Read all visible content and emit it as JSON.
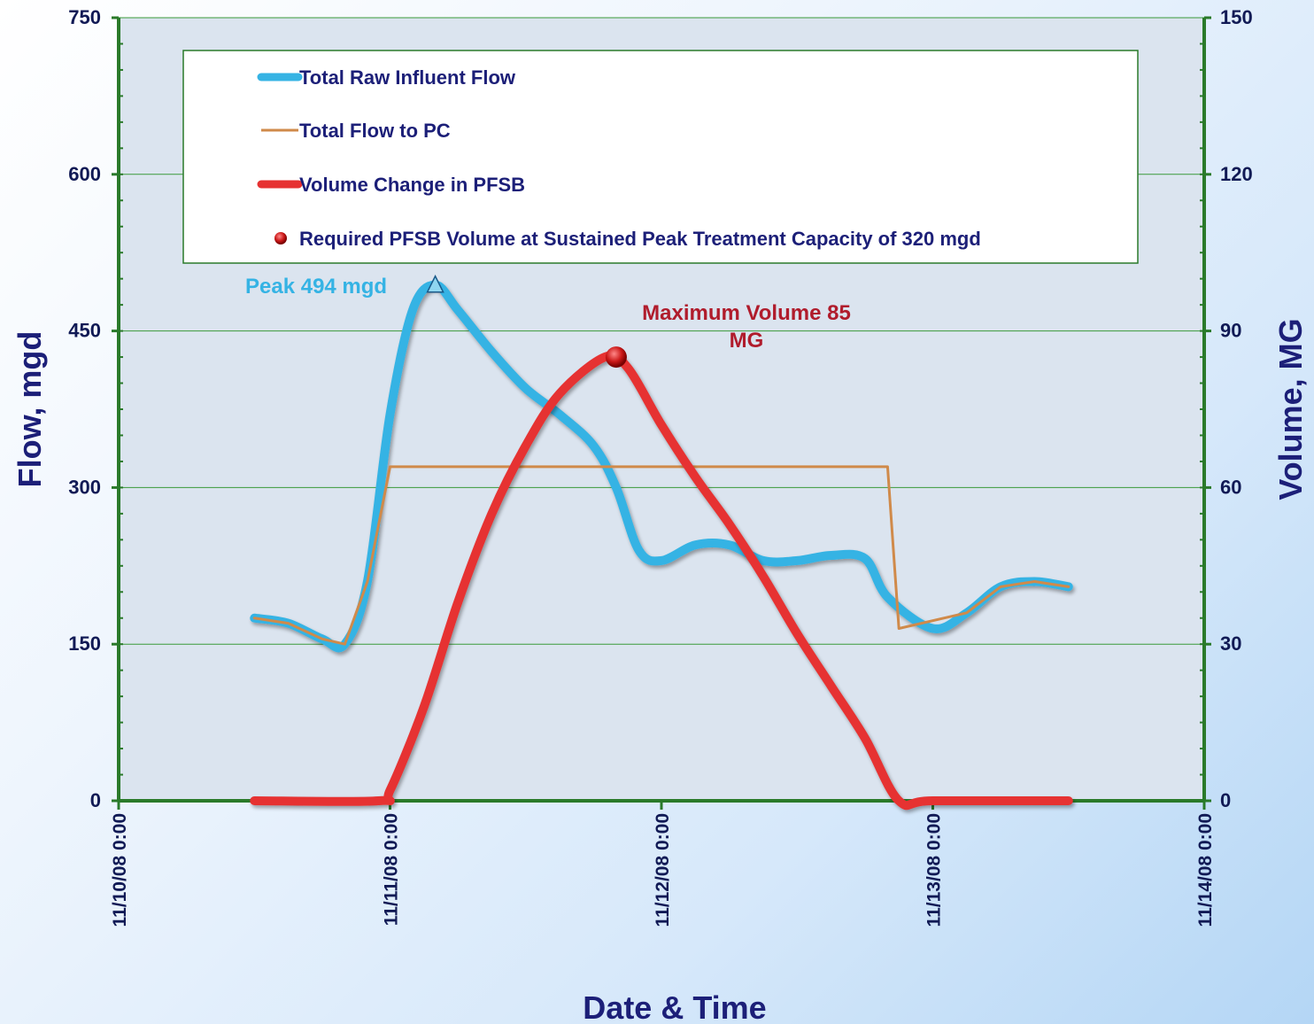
{
  "chart_data": {
    "type": "line",
    "xlabel": "Date & Time",
    "ylabel_left": "Flow, mgd",
    "ylabel_right": "Volume, MG",
    "x_ticks": [
      "11/10/08 0:00",
      "11/11/08 0:00",
      "11/12/08 0:00",
      "11/13/08 0:00",
      "11/14/08 0:00"
    ],
    "xlim": [
      "11/10/08 0:00",
      "11/14/08 0:00"
    ],
    "ylim_left": [
      0,
      750
    ],
    "ylim_right": [
      0,
      150
    ],
    "yticks_left": [
      "0",
      "150",
      "300",
      "450",
      "600",
      "750"
    ],
    "yticks_right": [
      "0",
      "30",
      "60",
      "90",
      "120",
      "150"
    ],
    "grid": "horizontal",
    "legend_position": "top",
    "series": [
      {
        "name": "Total Raw Influent Flow",
        "axis": "left",
        "color": "#35b3e4",
        "x": [
          "11/10/08 12:00",
          "11/10/08 15:00",
          "11/10/08 18:00",
          "11/10/08 20:00",
          "11/10/08 22:00",
          "11/11/08 0:00",
          "11/11/08 2:00",
          "11/11/08 4:00",
          "11/11/08 6:00",
          "11/11/08 9:00",
          "11/11/08 12:00",
          "11/11/08 15:00",
          "11/11/08 18:00",
          "11/11/08 20:00",
          "11/11/08 22:00",
          "11/12/08 0:00",
          "11/12/08 3:00",
          "11/12/08 6:00",
          "11/12/08 9:00",
          "11/12/08 12:00",
          "11/12/08 15:00",
          "11/12/08 18:00",
          "11/12/08 20:00",
          "11/13/08 0:00",
          "11/13/08 3:00",
          "11/13/08 6:00",
          "11/13/08 9:00",
          "11/13/08 12:00"
        ],
        "values": [
          175,
          170,
          155,
          150,
          210,
          370,
          470,
          494,
          470,
          430,
          395,
          370,
          340,
          300,
          240,
          230,
          245,
          245,
          230,
          230,
          235,
          232,
          195,
          165,
          180,
          205,
          210,
          205
        ]
      },
      {
        "name": "Total Flow to PC",
        "axis": "left",
        "color": "#d08a4a",
        "x": [
          "11/10/08 12:00",
          "11/10/08 15:00",
          "11/10/08 18:00",
          "11/10/08 20:00",
          "11/10/08 22:00",
          "11/11/08 0:00",
          "11/12/08 18:00",
          "11/12/08 20:00",
          "11/12/08 21:00",
          "11/13/08 3:00",
          "11/13/08 6:00",
          "11/13/08 9:00",
          "11/13/08 12:00"
        ],
        "values": [
          175,
          170,
          155,
          150,
          210,
          320,
          320,
          320,
          165,
          180,
          205,
          210,
          205
        ]
      },
      {
        "name": "Volume Change in PFSB",
        "axis": "right",
        "color": "#e63232",
        "x": [
          "11/10/08 12:00",
          "11/10/08 23:00",
          "11/11/08 0:00",
          "11/11/08 3:00",
          "11/11/08 6:00",
          "11/11/08 9:00",
          "11/11/08 12:00",
          "11/11/08 15:00",
          "11/11/08 19:00",
          "11/11/08 21:00",
          "11/12/08 0:00",
          "11/12/08 3:00",
          "11/12/08 6:00",
          "11/12/08 9:00",
          "11/12/08 12:00",
          "11/12/08 15:00",
          "11/12/08 18:00",
          "11/12/08 21:00",
          "11/13/08 0:00",
          "11/13/08 12:00"
        ],
        "values": [
          0,
          0,
          2,
          18,
          38,
          55,
          68,
          78,
          85,
          83,
          72,
          62,
          53,
          43,
          32,
          22,
          12,
          0,
          0,
          0
        ]
      }
    ],
    "markers": [
      {
        "name": "Required PFSB Volume at Sustained Peak Treatment Capacity of 320 mgd",
        "axis": "right",
        "x": "11/11/08 20:00",
        "value": 85,
        "color": "#cc1a1a"
      },
      {
        "name": "Peak",
        "axis": "left",
        "x": "11/11/08 4:00",
        "value": 494,
        "color": "#35b3e4"
      }
    ],
    "annotations": [
      {
        "text": "Peak 494 mgd",
        "color": "#35b3e4"
      },
      {
        "text_line1": "Maximum  Volume 85",
        "text_line2": "MG",
        "color": "#b01c2c"
      }
    ]
  }
}
